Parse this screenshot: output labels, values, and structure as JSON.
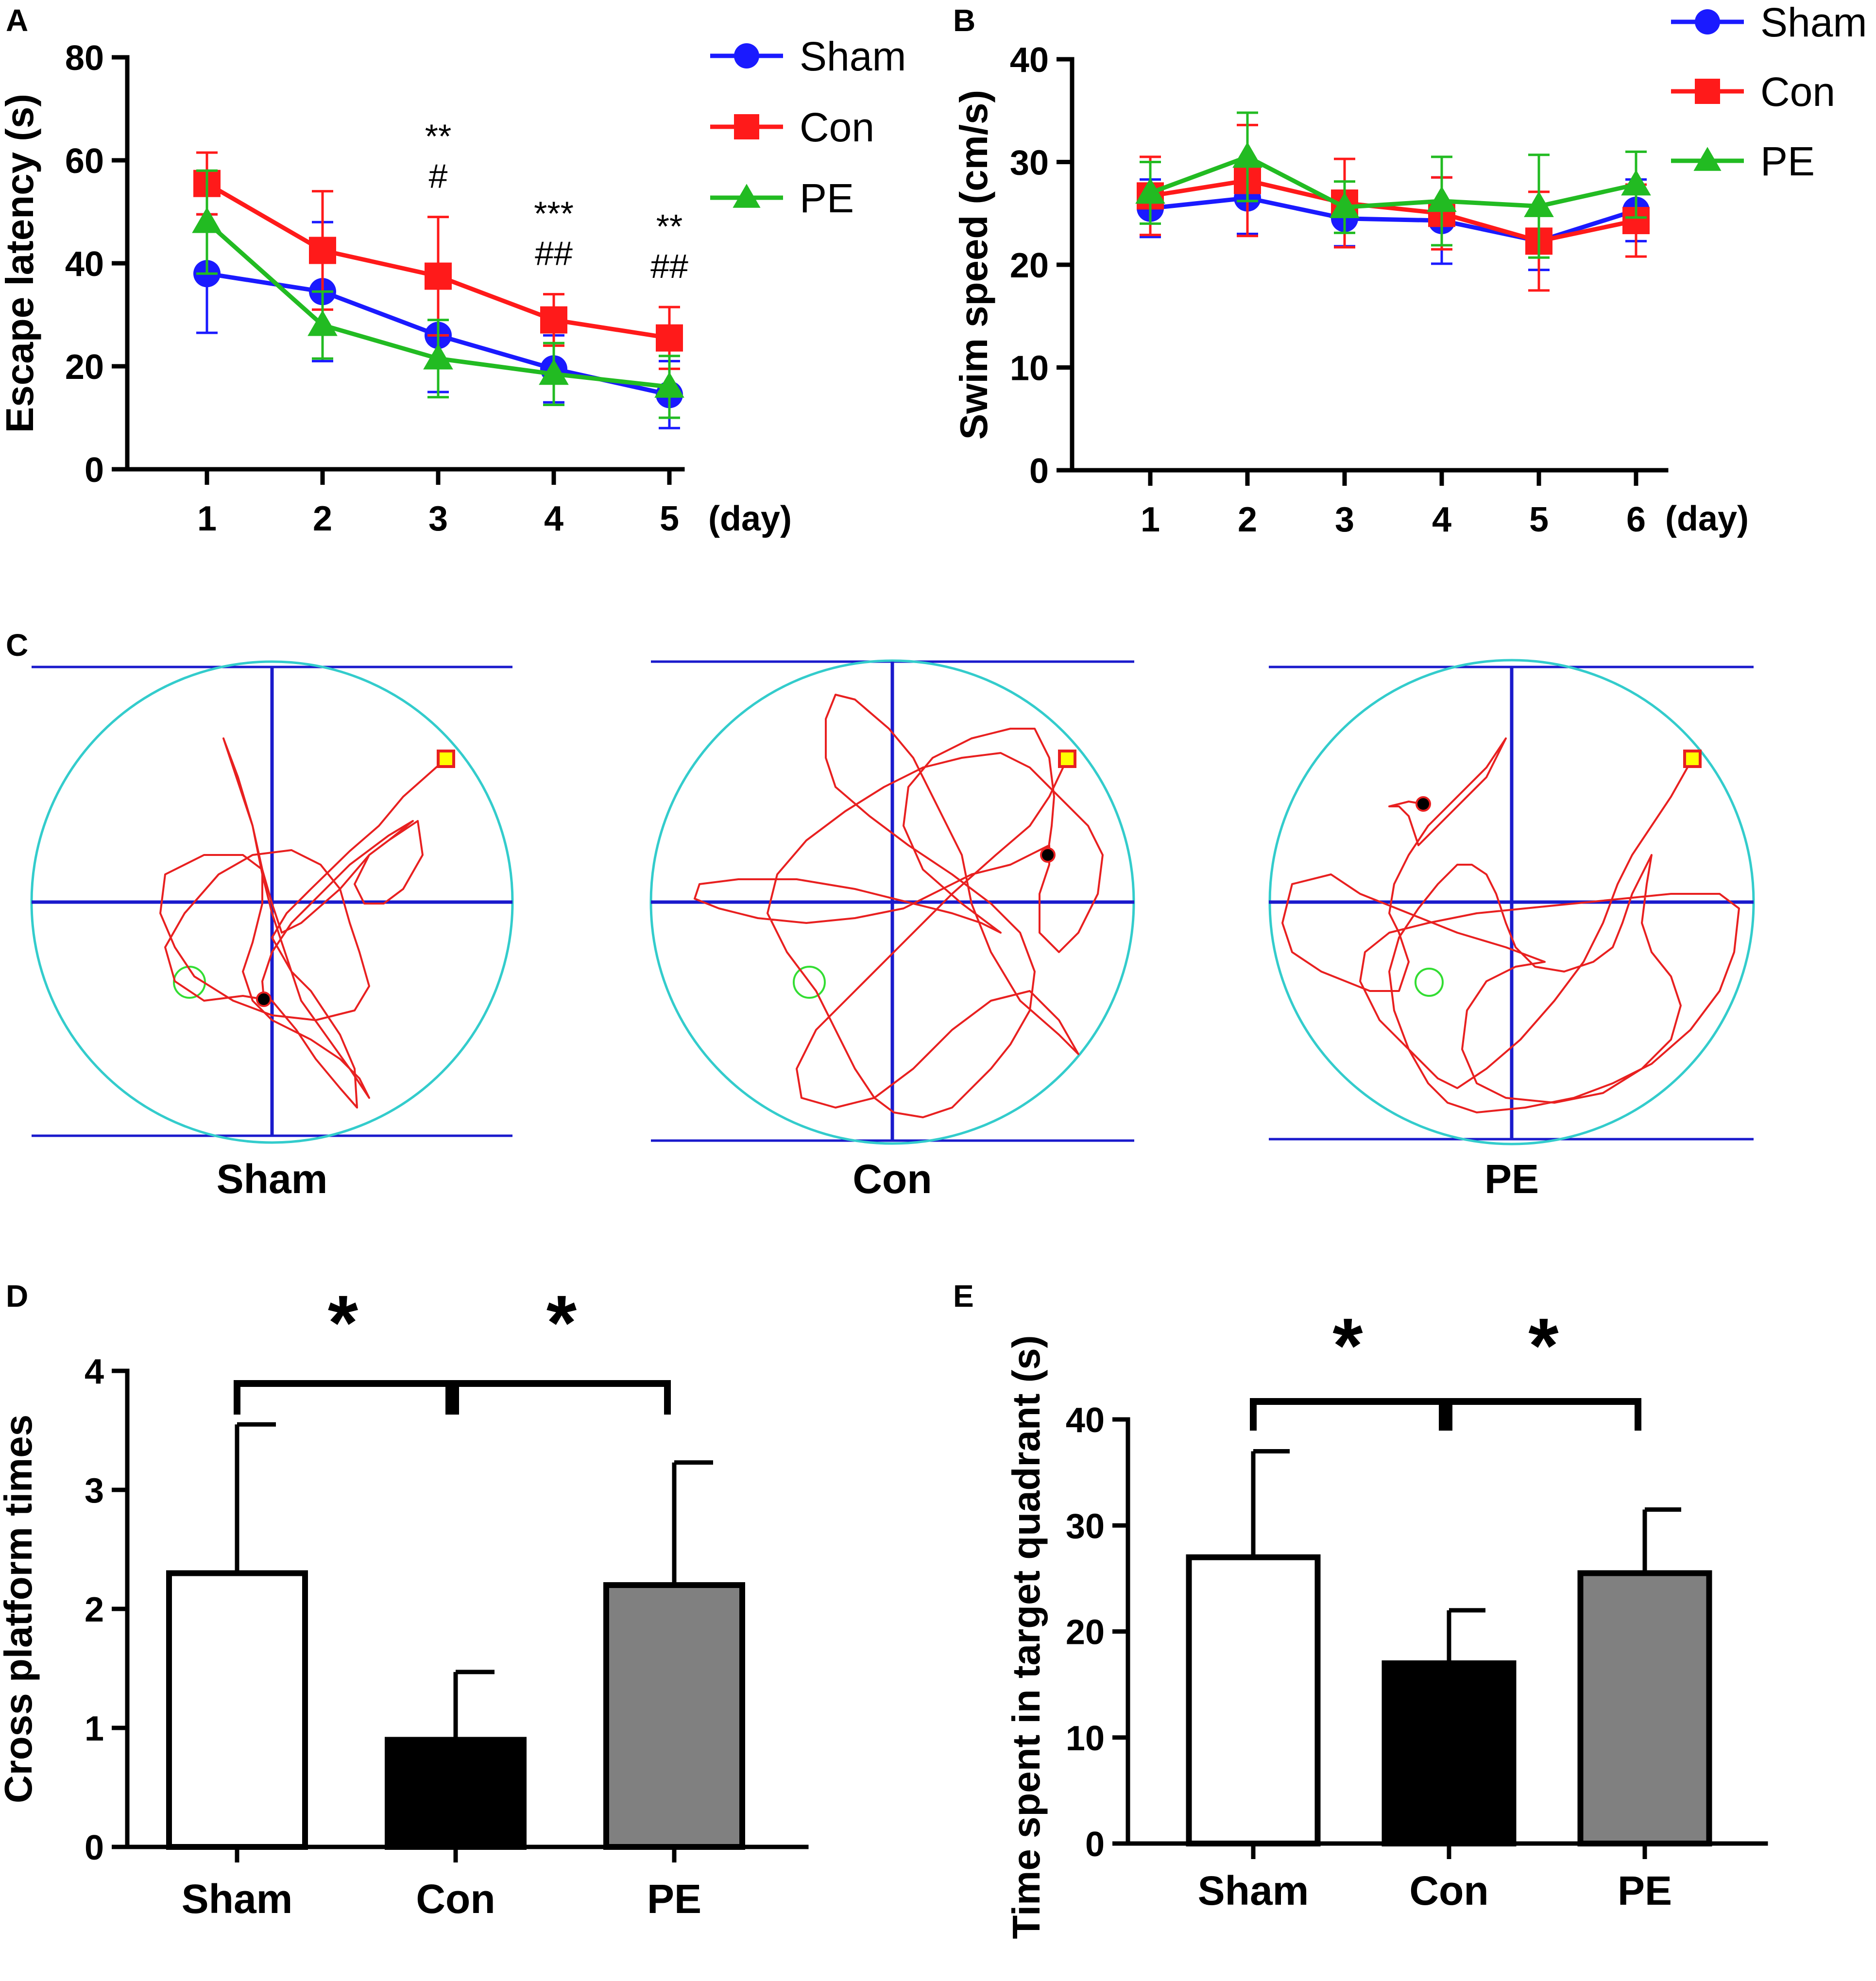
{
  "panel_letters": [
    "A",
    "B",
    "C",
    "D",
    "E"
  ],
  "colors": {
    "sham": "#1a1aff",
    "con": "#ff1a1a",
    "pe": "#22bb22",
    "pool": "#33cccc",
    "grid": "#1a1acc",
    "path": "#e82020",
    "platform": "#33dd33"
  },
  "chart_data": [
    {
      "id": "A",
      "type": "line",
      "title": "",
      "xlabel": "(day)",
      "ylabel": "Escape latency (s)",
      "categories": [
        "1",
        "2",
        "3",
        "4",
        "5"
      ],
      "ylim": [
        0,
        80
      ],
      "yticks": [
        "0",
        "20",
        "40",
        "60",
        "80"
      ],
      "legend_position": "top-right",
      "series": [
        {
          "name": "Sham",
          "color": "#1a1aff",
          "marker": "circle",
          "values": [
            38,
            34.5,
            26,
            19.5,
            14.5
          ],
          "errors": [
            11.5,
            13.5,
            11,
            6.5,
            6.5
          ]
        },
        {
          "name": "Con",
          "color": "#ff1a1a",
          "marker": "square",
          "values": [
            55.5,
            42.5,
            37.5,
            29,
            25.5
          ],
          "errors": [
            6,
            11.5,
            11.5,
            5,
            6
          ]
        },
        {
          "name": "PE",
          "color": "#22bb22",
          "marker": "triangle",
          "values": [
            48,
            28,
            21.5,
            18.5,
            16
          ],
          "errors": [
            10,
            6.5,
            7.5,
            6,
            6
          ]
        }
      ],
      "annotations": [
        {
          "day": "3",
          "lines": [
            "**",
            "#"
          ]
        },
        {
          "day": "4",
          "lines": [
            "***",
            "##"
          ]
        },
        {
          "day": "5",
          "lines": [
            "**",
            "##"
          ]
        }
      ]
    },
    {
      "id": "B",
      "type": "line",
      "title": "",
      "xlabel": "(day)",
      "ylabel": "Swim speed (cm/s)",
      "categories": [
        "1",
        "2",
        "3",
        "4",
        "5",
        "6"
      ],
      "ylim": [
        0,
        40
      ],
      "yticks": [
        "0",
        "10",
        "20",
        "30",
        "40"
      ],
      "legend_position": "top-right",
      "series": [
        {
          "name": "Sham",
          "color": "#1a1aff",
          "marker": "circle",
          "values": [
            25.5,
            26.5,
            24.5,
            24.3,
            22.3,
            25.3
          ],
          "errors": [
            2.8,
            3.5,
            2.7,
            4.2,
            2.8,
            3
          ]
        },
        {
          "name": "Con",
          "color": "#ff1a1a",
          "marker": "square",
          "values": [
            26.7,
            28.2,
            26,
            25,
            22.3,
            24.3
          ],
          "errors": [
            3.8,
            5.4,
            4.3,
            3.5,
            4.8,
            3.5
          ]
        },
        {
          "name": "PE",
          "color": "#22bb22",
          "marker": "triangle",
          "values": [
            27,
            30.5,
            25.6,
            26.2,
            25.7,
            27.8
          ],
          "errors": [
            3,
            4.3,
            2.5,
            4.3,
            5,
            3.2
          ]
        }
      ]
    },
    {
      "id": "D",
      "type": "bar",
      "title": "",
      "xlabel": "",
      "ylabel": "Cross platform times",
      "categories": [
        "Sham",
        "Con",
        "PE"
      ],
      "values": [
        2.3,
        0.9,
        2.2
      ],
      "errors": [
        1.25,
        0.57,
        1.03
      ],
      "bar_fills": [
        "#ffffff",
        "#000000",
        "#808080"
      ],
      "ylim": [
        0,
        4
      ],
      "yticks": [
        "0",
        "1",
        "2",
        "3",
        "4"
      ],
      "significance": [
        {
          "from": "Sham",
          "to": "Con",
          "label": "*"
        },
        {
          "from": "Con",
          "to": "PE",
          "label": "*"
        }
      ]
    },
    {
      "id": "E",
      "type": "bar",
      "title": "",
      "xlabel": "",
      "ylabel": "Time spent in target quadrant (s)",
      "categories": [
        "Sham",
        "Con",
        "PE"
      ],
      "values": [
        27,
        17,
        25.5
      ],
      "errors": [
        10,
        5,
        6
      ],
      "bar_fills": [
        "#ffffff",
        "#000000",
        "#808080"
      ],
      "ylim": [
        0,
        40
      ],
      "yticks": [
        "0",
        "10",
        "20",
        "30",
        "40"
      ],
      "significance": [
        {
          "from": "Sham",
          "to": "Con",
          "label": "*"
        },
        {
          "from": "Con",
          "to": "PE",
          "label": "*"
        }
      ]
    }
  ],
  "panel_c": {
    "type": "track-plots",
    "labels": [
      "Sham",
      "Con",
      "PE"
    ]
  }
}
